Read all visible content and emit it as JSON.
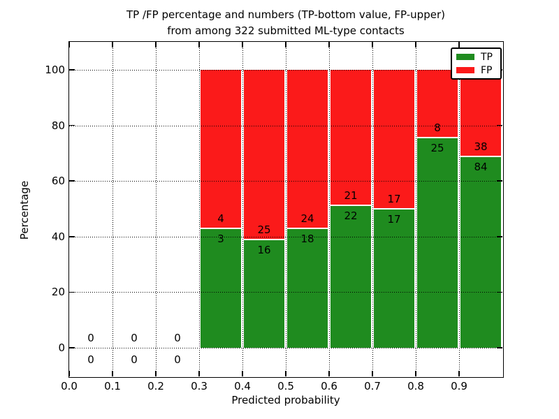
{
  "figure": {
    "title_line1": "TP /FP percentage and numbers (TP-bottom value, FP-upper)",
    "title_line2": "from among 322 submitted ML-type contacts"
  },
  "chart_data": {
    "type": "bar",
    "stacked": true,
    "title": "TP /FP percentage and numbers (TP-bottom value, FP-upper)\nfrom among 322 submitted ML-type contacts",
    "xlabel": "Predicted probability",
    "ylabel": "Percentage",
    "total_submitted": 322,
    "grid": "dotted",
    "xlim": [
      0.0,
      1.0
    ],
    "y_ticks": [
      0,
      20,
      40,
      60,
      80,
      100
    ],
    "x_tick_labels": [
      "0.0",
      "0.1",
      "0.2",
      "0.3",
      "0.4",
      "0.5",
      "0.6",
      "0.7",
      "0.8",
      "0.9"
    ],
    "legend": {
      "position": "upper right",
      "entries": [
        {
          "label": "TP",
          "color": "#1f8b1f"
        },
        {
          "label": "FP",
          "color": "#fb1a1a"
        }
      ]
    },
    "annotation_rule": "per bin: TP count below the stack boundary, FP count above it; bars show TP% (green, bottom) and FP% (red, top) summing to 100%",
    "bins": [
      {
        "range": "0.0-0.1",
        "tp": 0,
        "fp": 0
      },
      {
        "range": "0.1-0.2",
        "tp": 0,
        "fp": 0
      },
      {
        "range": "0.2-0.3",
        "tp": 0,
        "fp": 0
      },
      {
        "range": "0.3-0.4",
        "tp": 3,
        "fp": 4
      },
      {
        "range": "0.4-0.5",
        "tp": 16,
        "fp": 25
      },
      {
        "range": "0.5-0.6",
        "tp": 18,
        "fp": 24
      },
      {
        "range": "0.6-0.7",
        "tp": 22,
        "fp": 21
      },
      {
        "range": "0.7-0.8",
        "tp": 17,
        "fp": 17
      },
      {
        "range": "0.8-0.9",
        "tp": 25,
        "fp": 8
      },
      {
        "range": "0.9-1.0",
        "tp": 84,
        "fp": 38
      }
    ]
  }
}
